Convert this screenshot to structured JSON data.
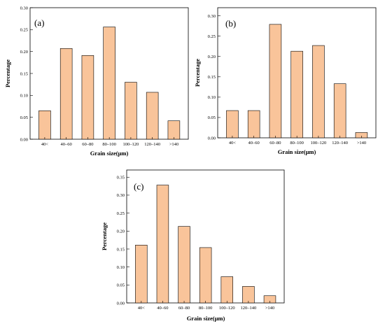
{
  "colors": {
    "bar_fill": "#f9c49a",
    "bar_edge": "#000000"
  },
  "chart_data": [
    {
      "type": "bar",
      "panel_label": "(a)",
      "categories": [
        "40<",
        "40–60",
        "60–80",
        "80–100",
        "100–120",
        "120–140",
        ">140"
      ],
      "values": [
        0.065,
        0.207,
        0.191,
        0.256,
        0.13,
        0.107,
        0.042
      ],
      "xlabel": "Grain size(μm)",
      "ylabel": "Percentage",
      "ylim": [
        0,
        0.3
      ],
      "yticks": [
        "0.00",
        "0.05",
        "0.10",
        "0.15",
        "0.20",
        "0.25",
        "0.30"
      ],
      "grid": false
    },
    {
      "type": "bar",
      "panel_label": "(b)",
      "categories": [
        "40<",
        "40–60",
        "60–80",
        "80–100",
        "100–120",
        "120–140",
        ">140"
      ],
      "values": [
        0.067,
        0.067,
        0.279,
        0.213,
        0.227,
        0.133,
        0.013
      ],
      "xlabel": "Grain size(μm)",
      "ylabel": "Percentage",
      "ylim": [
        0,
        0.32
      ],
      "yticks": [
        "0.00",
        "0.05",
        "0.10",
        "0.15",
        "0.20",
        "0.25",
        "0.30"
      ],
      "grid": false
    },
    {
      "type": "bar",
      "panel_label": "(c)",
      "categories": [
        "40<",
        "40–60",
        "60–80",
        "80–100",
        "100–120",
        "120–140",
        ">140"
      ],
      "values": [
        0.161,
        0.328,
        0.213,
        0.154,
        0.073,
        0.046,
        0.02
      ],
      "xlabel": "Grain size(μm)",
      "ylabel": "Percentage",
      "ylim": [
        0,
        0.37
      ],
      "yticks": [
        "0.00",
        "0.05",
        "0.10",
        "0.15",
        "0.20",
        "0.25",
        "0.30",
        "0.35"
      ],
      "grid": false
    }
  ]
}
